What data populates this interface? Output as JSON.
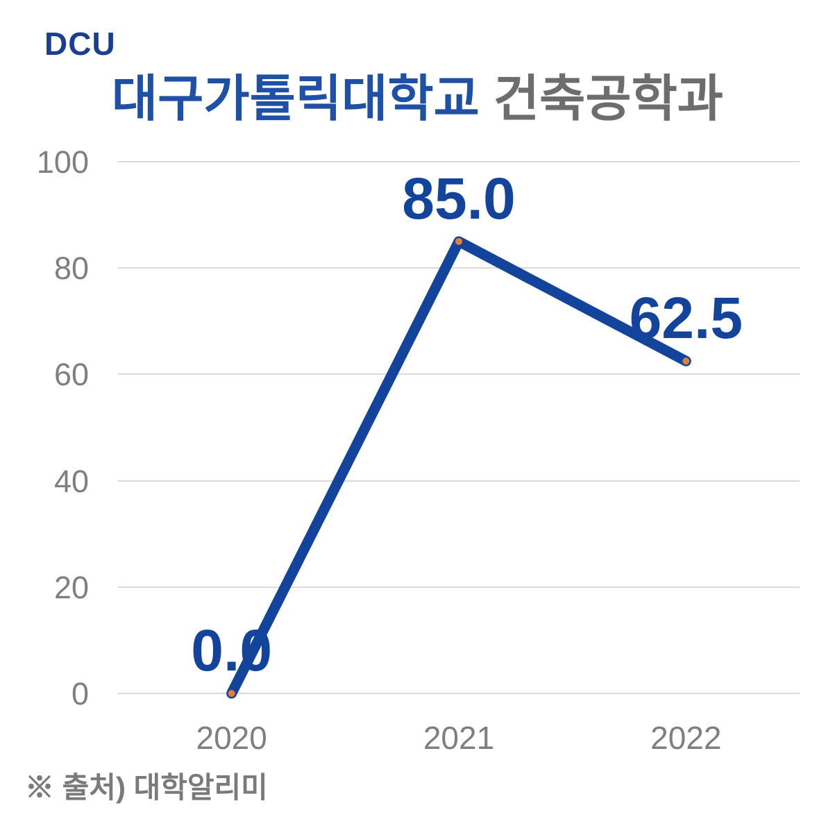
{
  "header": {
    "logo": "DCU",
    "title_university": "대구가톨릭대학교",
    "title_department": " 건축공학과"
  },
  "footer": {
    "source": "※ 출처) 대학알리미"
  },
  "chart_data": {
    "type": "line",
    "title": "대구가톨릭대학교 건축공학과",
    "categories": [
      "2020",
      "2021",
      "2022"
    ],
    "values": [
      0.0,
      85.0,
      62.5
    ],
    "data_labels": [
      "0.0",
      "85.0",
      "62.5"
    ],
    "xlabel": "",
    "ylabel": "",
    "ylim": [
      0,
      100
    ],
    "yticks": [
      0,
      20,
      40,
      60,
      80,
      100
    ],
    "grid": "horizontal",
    "legend": "none",
    "colors": {
      "line": "#12449c",
      "marker": "#e87f30",
      "data_label": "#12449c",
      "axis_label": "#7f7f7f",
      "gridline": "#d9d9d9",
      "title_primary": "#1e51a5",
      "title_secondary": "#6d6d6d",
      "logo": "#1b3e94",
      "source": "#7a7a7a"
    }
  }
}
